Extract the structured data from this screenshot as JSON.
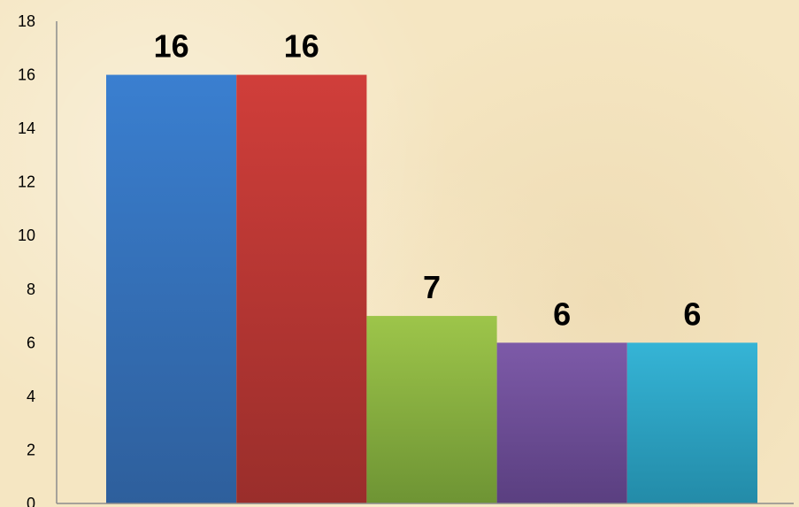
{
  "chart_data": {
    "type": "bar",
    "title": "",
    "xlabel": "",
    "ylabel": "",
    "ylim": [
      0,
      18
    ],
    "yticks": [
      0,
      2,
      4,
      6,
      8,
      10,
      12,
      14,
      16,
      18
    ],
    "grid": false,
    "legend": "none",
    "categories": [
      "",
      "",
      "",
      "",
      ""
    ],
    "values": [
      16,
      16,
      7,
      6,
      6
    ],
    "data_labels": [
      "16",
      "16",
      "7",
      "6",
      "6"
    ],
    "colors": [
      [
        "#3a7fd0",
        "#2e5f9c"
      ],
      [
        "#d03e3a",
        "#9a2e2b"
      ],
      [
        "#9dc54a",
        "#6e9434"
      ],
      [
        "#7d5aa8",
        "#5a3f80"
      ],
      [
        "#35b4d6",
        "#238ba8"
      ]
    ],
    "axis_color": "#8c8c8c"
  }
}
